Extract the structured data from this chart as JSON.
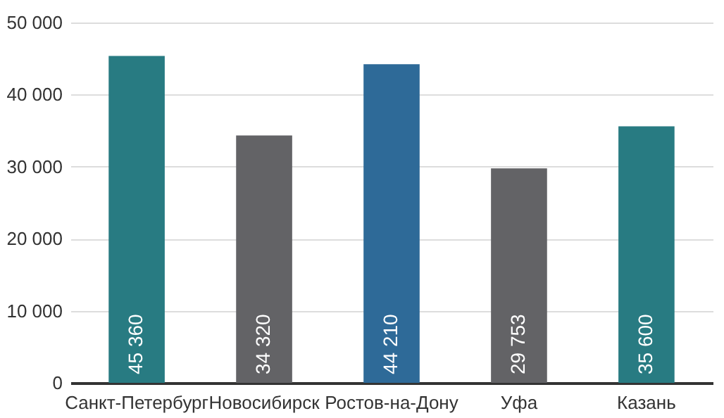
{
  "chart_data": {
    "type": "bar",
    "categories": [
      "Санкт-Петербург",
      "Новосибирск",
      "Ростов-на-Дону",
      "Уфа",
      "Казань"
    ],
    "values": [
      45360,
      34320,
      44210,
      29753,
      35600
    ],
    "value_labels": [
      "45 360",
      "34 320",
      "44 210",
      "29 753",
      "35 600"
    ],
    "colors": [
      "#287b82",
      "#636366",
      "#2e6a98",
      "#636366",
      "#287b82"
    ],
    "ylim": [
      0,
      50000
    ],
    "yticks": [
      {
        "value": 0,
        "label": "0"
      },
      {
        "value": 10000,
        "label": "10 000"
      },
      {
        "value": 20000,
        "label": "20 000"
      },
      {
        "value": 30000,
        "label": "30 000"
      },
      {
        "value": 40000,
        "label": "40 000"
      },
      {
        "value": 50000,
        "label": "50 000"
      }
    ],
    "grid": "y"
  }
}
